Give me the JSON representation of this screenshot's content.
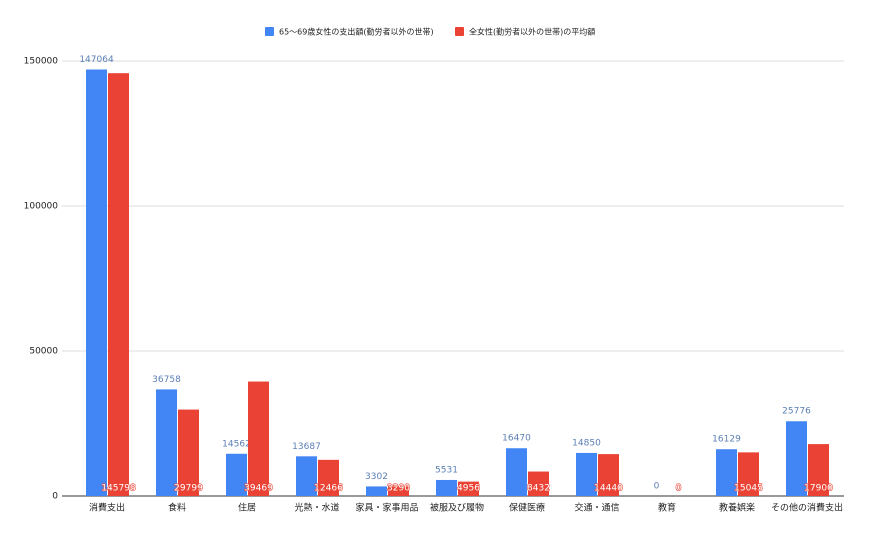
{
  "chart_data": {
    "type": "bar",
    "categories": [
      "消費支出",
      "食料",
      "住居",
      "光熱・水道",
      "家具・家事用品",
      "被服及び履物",
      "保健医療",
      "交通・通信",
      "教育",
      "教養娯楽",
      "その他の消費支出"
    ],
    "series": [
      {
        "name": "65〜69歳女性の支出額(勤労者以外の世帯)",
        "color": "#4285f4",
        "values": [
          147064,
          36758,
          14562,
          13687,
          3302,
          5531,
          16470,
          14850,
          0,
          16129,
          25776
        ]
      },
      {
        "name": "全女性(勤労者以外の世帯)の平均額",
        "color": "#ea4335",
        "values": [
          145798,
          29799,
          39469,
          12466,
          3290,
          4956,
          8432,
          14440,
          0,
          15045,
          17900
        ]
      }
    ],
    "ylim": [
      0,
      150000
    ],
    "yticks": [
      0,
      50000,
      100000,
      150000
    ],
    "grid": true,
    "legend": "top"
  }
}
